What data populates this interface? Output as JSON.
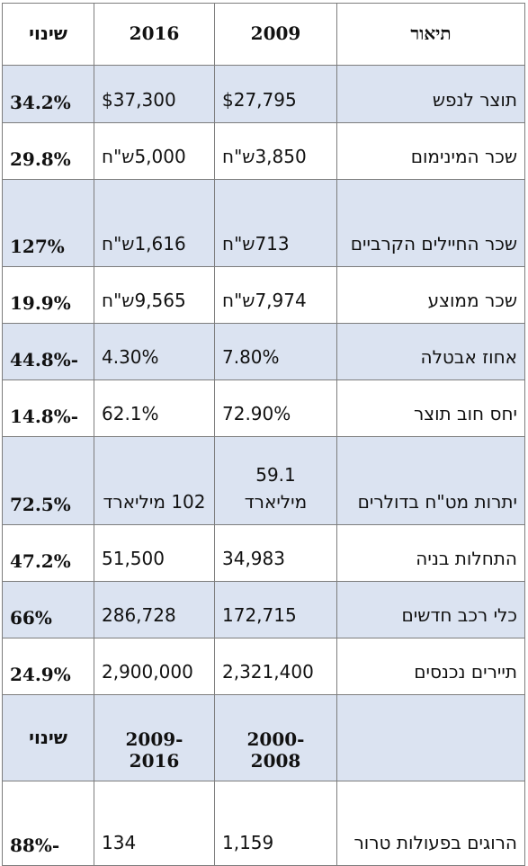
{
  "header": {
    "description": "תיאור",
    "year_a": "2009",
    "year_b": "2016",
    "change": "שינוי"
  },
  "rows": [
    {
      "desc": "תוצר לנפש",
      "a": "$27,795",
      "b": "$37,300",
      "change": "34.2%"
    },
    {
      "desc": "שכר המינימום",
      "a": "3,850ש\"ח",
      "b": "5,000ש\"ח",
      "change": "29.8%"
    },
    {
      "desc": "שכר החיילים הקרביים",
      "a": "713ש\"ח",
      "b": "1,616ש\"ח",
      "change": "127%"
    },
    {
      "desc": "שכר ממוצע",
      "a": "7,974ש\"ח",
      "b": "9,565ש\"ח",
      "change": "19.9%"
    },
    {
      "desc": "אחוז אבטלה",
      "a": "7.80%",
      "b": "4.30%",
      "change": "-44.8%"
    },
    {
      "desc": "יחס חוב תוצר",
      "a": "72.90%",
      "b": "62.1%",
      "change": "-14.8%"
    },
    {
      "desc": "יתרות מט\"ח בדולרים",
      "a": "59.1 מיליארד",
      "b": "102 מיליארד",
      "change": "72.5%"
    },
    {
      "desc": "התחלות בניה",
      "a": "34,983",
      "b": "51,500",
      "change": "47.2%"
    },
    {
      "desc": "כלי רכב חדשים",
      "a": "172,715",
      "b": "286,728",
      "change": "66%"
    },
    {
      "desc": "תיירים נכנסים",
      "a": "2,321,400",
      "b": "2,900,000",
      "change": "24.9%"
    }
  ],
  "subheader": {
    "description": "",
    "period_a": "2000-2008",
    "period_b": "2009-2016",
    "change": "שינוי"
  },
  "terror_row": {
    "desc": "הרוגים בפעולות טרור",
    "a": "1,159",
    "b": "134",
    "change": "-88%"
  }
}
